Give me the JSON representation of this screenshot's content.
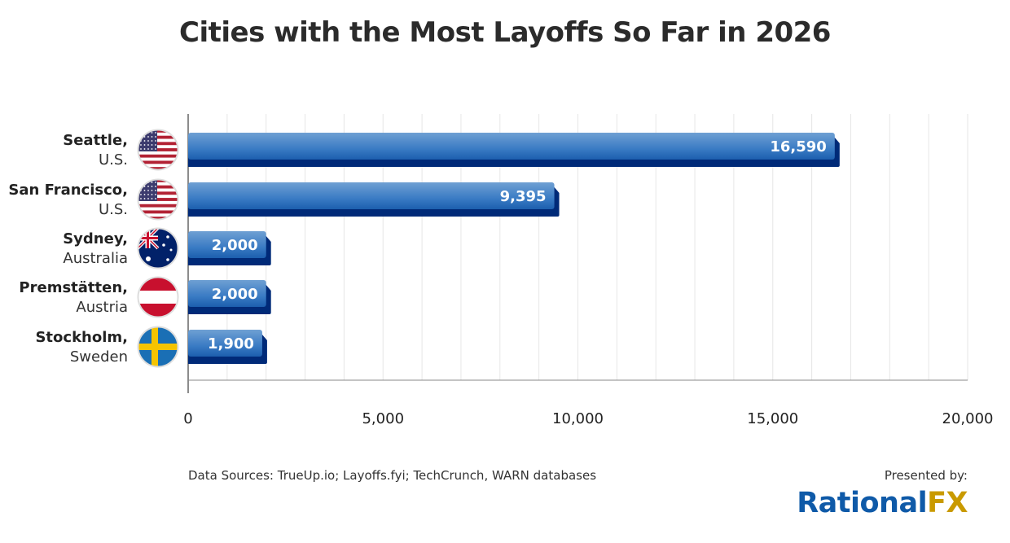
{
  "chart_data": {
    "type": "bar",
    "orientation": "horizontal",
    "title": "Cities with the Most Layoffs So Far in 2026",
    "categories": [
      {
        "city": "Seattle,",
        "country": "U.S.",
        "flag": "usa-flag"
      },
      {
        "city": "San Francisco,",
        "country": "U.S.",
        "flag": "usa-flag"
      },
      {
        "city": "Sydney,",
        "country": "Australia",
        "flag": "australia-flag"
      },
      {
        "city": "Premstätten,",
        "country": "Austria",
        "flag": "austria-flag"
      },
      {
        "city": "Stockholm,",
        "country": "Sweden",
        "flag": "sweden-flag"
      }
    ],
    "values": [
      16590,
      9395,
      2000,
      2000,
      1900
    ],
    "data_labels": [
      "16,590",
      "9,395",
      "2,000",
      "2,000",
      "1,900"
    ],
    "xlim": [
      0,
      20000
    ],
    "x_ticks": [
      0,
      5000,
      10000,
      15000,
      20000
    ],
    "x_tick_labels": [
      "0",
      "5,000",
      "10,000",
      "15,000",
      "20,000"
    ],
    "grid": "vertical, minor every 1,000",
    "bar_color": "#3a7bc4",
    "bar_shadow_color": "#002a78"
  },
  "footer": {
    "source": "Data Sources: TrueUp.io; Layoffs.fyi; TechCrunch, WARN databases",
    "presented_by": "Presented by:",
    "logo_part1": "Rational",
    "logo_part2": "FX",
    "logo_color1": "#0f5aa8",
    "logo_color2": "#c99a00"
  }
}
